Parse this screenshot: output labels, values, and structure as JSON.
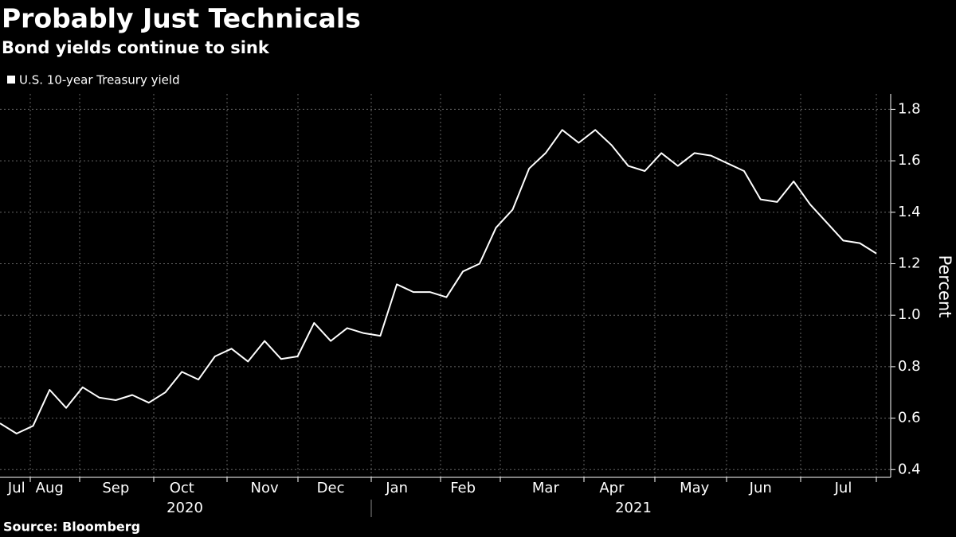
{
  "chart_data": {
    "type": "line",
    "title": "Probably Just Technicals",
    "subtitle": "Bond yields continue to sink",
    "y_label": "Percent",
    "source": "Source: Bloomberg",
    "categories": [
      null,
      "Jul",
      null,
      "Aug",
      null,
      null,
      null,
      "Sep",
      null,
      null,
      null,
      "Oct",
      null,
      null,
      null,
      null,
      "Nov",
      null,
      null,
      null,
      "Dec",
      null,
      null,
      null,
      "Jan",
      null,
      null,
      null,
      "Feb",
      null,
      null,
      null,
      null,
      "Mar",
      null,
      null,
      null,
      "Apr",
      null,
      null,
      null,
      null,
      "May",
      null,
      null,
      null,
      "Jun",
      null,
      null,
      null,
      null,
      "Jul",
      null,
      null
    ],
    "year_labels": [
      "2020",
      "2021"
    ],
    "series": [
      {
        "name": "U.S. 10-year Treasury yield",
        "color": "#ffffff",
        "values": [
          0.58,
          0.54,
          0.57,
          0.71,
          0.64,
          0.72,
          0.68,
          0.67,
          0.69,
          0.66,
          0.7,
          0.78,
          0.75,
          0.84,
          0.87,
          0.82,
          0.9,
          0.83,
          0.84,
          0.97,
          0.9,
          0.95,
          0.93,
          0.92,
          1.12,
          1.09,
          1.09,
          1.07,
          1.17,
          1.2,
          1.34,
          1.41,
          1.57,
          1.63,
          1.72,
          1.67,
          1.72,
          1.66,
          1.58,
          1.56,
          1.63,
          1.58,
          1.63,
          1.62,
          1.59,
          1.56,
          1.45,
          1.44,
          1.52,
          1.43,
          1.36,
          1.29,
          1.28,
          1.24
        ]
      }
    ],
    "ylim": [
      0.37,
      1.86
    ],
    "yticks": [
      0.4,
      0.6,
      0.8,
      {
        "value": 1,
        "label": "1.0"
      },
      1.2,
      1.4,
      1.6,
      1.8
    ],
    "grid": true
  }
}
